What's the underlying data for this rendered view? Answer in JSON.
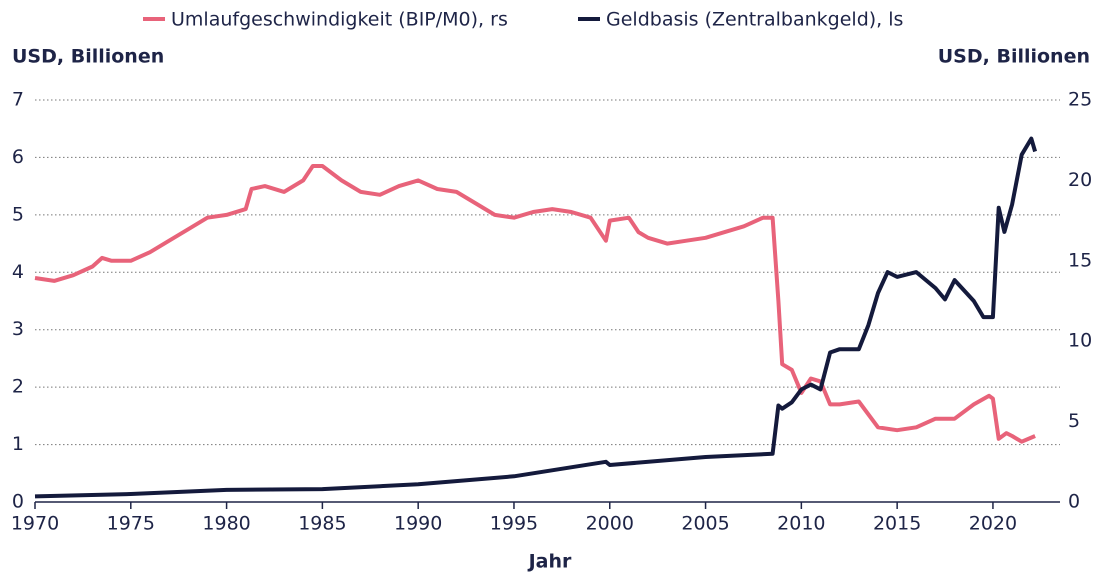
{
  "chart_data": {
    "type": "line",
    "x_label": "Jahr",
    "y_label": "USD, Billionen",
    "y2_label": "USD, Billionen",
    "xlim": [
      1970,
      2023.5
    ],
    "xticks": [
      1970,
      1975,
      1980,
      1985,
      1990,
      1995,
      2000,
      2005,
      2010,
      2015,
      2020
    ],
    "ylim": [
      0,
      7
    ],
    "yticks": [
      0,
      1,
      2,
      3,
      4,
      5,
      6,
      7
    ],
    "y2lim": [
      0,
      25
    ],
    "y2ticks": [
      0,
      5,
      10,
      15,
      20,
      25
    ],
    "grid": true,
    "legend": "top",
    "series": [
      {
        "name": "Umlaufgeschwindigkeit (BIP/M0), rs",
        "color": "#e8637a",
        "axis": "y",
        "x": [
          1970,
          1971,
          1972,
          1973,
          1973.5,
          1974,
          1975,
          1976,
          1977,
          1978,
          1979,
          1980,
          1981,
          1981.3,
          1982,
          1983,
          1984,
          1984.5,
          1985,
          1986,
          1987,
          1988,
          1989,
          1990,
          1991,
          1992,
          1993,
          1994,
          1995,
          1996,
          1997,
          1998,
          1999,
          1999.8,
          2000,
          2001,
          2001.5,
          2002,
          2003,
          2004,
          2005,
          2006,
          2007,
          2008,
          2008.5,
          2008.8,
          2009,
          2009.5,
          2010,
          2010.5,
          2011,
          2011.5,
          2012,
          2013,
          2014,
          2015,
          2016,
          2017,
          2018,
          2019,
          2019.8,
          2020,
          2020.3,
          2020.7,
          2021,
          2021.5,
          2022.2
        ],
        "values": [
          3.9,
          3.85,
          3.95,
          4.1,
          4.25,
          4.2,
          4.2,
          4.35,
          4.55,
          4.75,
          4.95,
          5.0,
          5.1,
          5.45,
          5.5,
          5.4,
          5.6,
          5.85,
          5.85,
          5.6,
          5.4,
          5.35,
          5.5,
          5.6,
          5.45,
          5.4,
          5.2,
          5.0,
          4.95,
          5.05,
          5.1,
          5.05,
          4.95,
          4.55,
          4.9,
          4.95,
          4.7,
          4.6,
          4.5,
          4.55,
          4.6,
          4.7,
          4.8,
          4.95,
          4.95,
          3.5,
          2.4,
          2.3,
          1.9,
          2.15,
          2.1,
          1.7,
          1.7,
          1.75,
          1.3,
          1.25,
          1.3,
          1.45,
          1.45,
          1.7,
          1.85,
          1.8,
          1.1,
          1.2,
          1.15,
          1.05,
          1.15
        ]
      },
      {
        "name": "Geldbasis (Zentralbankgeld), ls",
        "color": "#141a3c",
        "axis": "y2",
        "x": [
          1970,
          1975,
          1980,
          1985,
          1990,
          1995,
          1999.8,
          2000,
          2005,
          2008.5,
          2008.8,
          2009,
          2009.5,
          2010,
          2010.5,
          2011,
          2011.5,
          2012,
          2013,
          2013.5,
          2014,
          2014.5,
          2015,
          2016,
          2017,
          2017.5,
          2018,
          2019,
          2019.5,
          2020,
          2020.3,
          2020.6,
          2021,
          2021.5,
          2022,
          2022.2
        ],
        "values": [
          0.35,
          0.5,
          0.75,
          0.8,
          1.1,
          1.6,
          2.5,
          2.3,
          2.8,
          3.0,
          6.0,
          5.8,
          6.2,
          7.0,
          7.3,
          7.0,
          9.3,
          9.5,
          9.5,
          11,
          13.0,
          14.3,
          14.0,
          14.3,
          13.3,
          12.6,
          13.8,
          12.5,
          11.5,
          11.5,
          18.3,
          16.8,
          18.5,
          21.6,
          22.6,
          21.8
        ]
      }
    ]
  }
}
